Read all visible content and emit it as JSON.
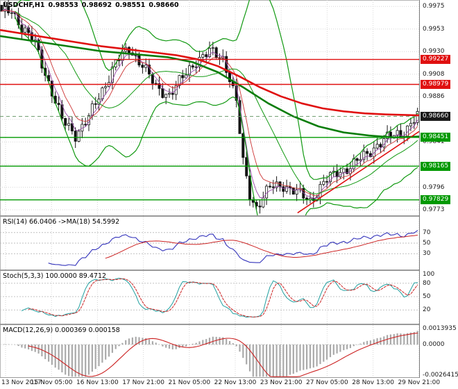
{
  "header": {
    "symbol": "USDCHF,H1",
    "open": "0.98553",
    "high": "0.98692",
    "low": "0.98551",
    "close": "0.98660"
  },
  "price_axis": {
    "labels": [
      {
        "text": "0.9975",
        "value": 0.99755
      },
      {
        "text": "0.9953",
        "value": 0.9953
      },
      {
        "text": "0.9930",
        "value": 0.99305
      },
      {
        "text": "0.9908",
        "value": 0.9908
      },
      {
        "text": "0.9886",
        "value": 0.98855
      },
      {
        "text": "0.9841",
        "value": 0.98405
      },
      {
        "text": "0.9796",
        "value": 0.97955
      },
      {
        "text": "0.9773",
        "value": 0.9773
      }
    ],
    "grid_extra": [
      0.9863,
      0.9818
    ],
    "badges": [
      {
        "text": "0.99227",
        "value": 0.99227,
        "color": "#e01010"
      },
      {
        "text": "0.98979",
        "value": 0.98979,
        "color": "#e01010"
      },
      {
        "text": "0.98660",
        "value": 0.9866,
        "color": "#1a1a1a"
      },
      {
        "text": "0.98451",
        "value": 0.98451,
        "color": "#009900"
      },
      {
        "text": "0.98165",
        "value": 0.98165,
        "color": "#009900"
      },
      {
        "text": "0.97829",
        "value": 0.97829,
        "color": "#009900"
      }
    ]
  },
  "chart_data": {
    "type": "candlestick",
    "title": "USDCHF,H1",
    "timeframe": "H1",
    "ylim": [
      0.97675,
      0.99819
    ],
    "x_labels": [
      "13 Nov 2017",
      "15 Nov 05:00",
      "16 Nov 13:00",
      "17 Nov 21:00",
      "21 Nov 05:00",
      "22 Nov 13:00",
      "23 Nov 21:00",
      "27 Nov 05:00",
      "28 Nov 13:00",
      "29 Nov 21:00"
    ],
    "closes": [
      0.9968,
      0.99693,
      0.99707,
      0.9972,
      0.99663,
      0.99607,
      0.9955,
      0.99508,
      0.99465,
      0.99423,
      0.9938,
      0.99285,
      0.9919,
      0.99095,
      0.99,
      0.98905,
      0.9881,
      0.98715,
      0.9862,
      0.98585,
      0.9855,
      0.98515,
      0.9848,
      0.98523,
      0.98565,
      0.98608,
      0.9865,
      0.98718,
      0.98785,
      0.98853,
      0.9892,
      0.9899,
      0.9906,
      0.9913,
      0.992,
      0.99233,
      0.99265,
      0.99298,
      0.9933,
      0.99293,
      0.99255,
      0.99218,
      0.9918,
      0.9912,
      0.9906,
      0.99,
      0.9894,
      0.98925,
      0.9891,
      0.98895,
      0.9888,
      0.9892,
      0.9896,
      0.99,
      0.9904,
      0.99085,
      0.9913,
      0.99175,
      0.9922,
      0.9924,
      0.9926,
      0.9928,
      0.993,
      0.99285,
      0.9927,
      0.99255,
      0.9924,
      0.99145,
      0.9905,
      0.98925,
      0.988,
      0.985,
      0.982,
      0.9804,
      0.9788,
      0.9782,
      0.9776,
      0.97808,
      0.97855,
      0.97903,
      0.9795,
      0.97958,
      0.97965,
      0.97973,
      0.9798,
      0.9796,
      0.9794,
      0.9792,
      0.979,
      0.9788,
      0.9786,
      0.9784,
      0.9782,
      0.97865,
      0.9791,
      0.97955,
      0.98,
      0.98025,
      0.9805,
      0.98075,
      0.981,
      0.98115,
      0.9813,
      0.98145,
      0.9816,
      0.98185,
      0.9821,
      0.98235,
      0.9826,
      0.9829,
      0.9832,
      0.9835,
      0.9838,
      0.984,
      0.9842,
      0.9844,
      0.9846,
      0.98473,
      0.98485,
      0.98498,
      0.9851,
      0.98548,
      0.98585,
      0.98623,
      0.9866
    ],
    "overlays": {
      "bollinger": {
        "period": 20,
        "deviation": 2,
        "color": "#119911"
      },
      "ema_fast": {
        "period": 4,
        "color": "#9a4aaa"
      },
      "ema_medium": {
        "period": 8,
        "color": "#cc3333"
      },
      "ma_slow_red": {
        "color": "#e01010",
        "points": [
          [
            0,
            0.9952
          ],
          [
            0.06,
            0.9948
          ],
          [
            0.12,
            0.9944
          ],
          [
            0.18,
            0.994
          ],
          [
            0.24,
            0.9936
          ],
          [
            0.3,
            0.9933
          ],
          [
            0.36,
            0.993
          ],
          [
            0.42,
            0.9927
          ],
          [
            0.47,
            0.9923
          ],
          [
            0.52,
            0.9916
          ],
          [
            0.57,
            0.9906
          ],
          [
            0.62,
            0.9895
          ],
          [
            0.67,
            0.9886
          ],
          [
            0.72,
            0.9879
          ],
          [
            0.77,
            0.9874
          ],
          [
            0.82,
            0.9871
          ],
          [
            0.87,
            0.9869
          ],
          [
            0.92,
            0.9868
          ],
          [
            1,
            0.9867
          ]
        ]
      },
      "ma_slow_green": {
        "color": "#0a7d0a",
        "points": [
          [
            0,
            0.9946
          ],
          [
            0.08,
            0.9941
          ],
          [
            0.16,
            0.9936
          ],
          [
            0.24,
            0.9931
          ],
          [
            0.32,
            0.9928
          ],
          [
            0.4,
            0.9925
          ],
          [
            0.46,
            0.992
          ],
          [
            0.52,
            0.991
          ],
          [
            0.58,
            0.9895
          ],
          [
            0.64,
            0.9879
          ],
          [
            0.7,
            0.9866
          ],
          [
            0.76,
            0.9856
          ],
          [
            0.82,
            0.985
          ],
          [
            0.88,
            0.9847
          ],
          [
            0.94,
            0.9845
          ],
          [
            1,
            0.9846
          ]
        ]
      },
      "trendline": {
        "color": "#e01010",
        "from": [
          0.71,
          0.977
        ],
        "to": [
          1,
          0.9851
        ]
      },
      "hlines": [
        {
          "value": 0.99227,
          "color": "#e01010",
          "style": "solid"
        },
        {
          "value": 0.98979,
          "color": "#e01010",
          "style": "solid"
        },
        {
          "value": 0.9866,
          "color": "#6a9a6a",
          "style": "dashed"
        },
        {
          "value": 0.98451,
          "color": "#009900",
          "style": "solid"
        },
        {
          "value": 0.98165,
          "color": "#009900",
          "style": "solid"
        },
        {
          "value": 0.97829,
          "color": "#009900",
          "style": "solid"
        }
      ]
    },
    "indicators": {
      "rsi": {
        "label": "RSI(14) 66.0406  ->MA(18) 54.5992",
        "period": 14,
        "ma_period": 18,
        "current": 66.0406,
        "ma_current": 54.5992,
        "levels": [
          70,
          50,
          30
        ],
        "range": [
          0,
          100
        ],
        "color_main": "#3333bb",
        "color_signal": "#cc2222"
      },
      "stoch": {
        "label": "Stoch(5,3,3) 100.0000 89.4712",
        "k_period": 5,
        "d_period": 3,
        "slowing": 3,
        "current_k": 100.0,
        "current_d": 89.4712,
        "levels": [
          100,
          80,
          50,
          20
        ],
        "range": [
          0,
          100
        ],
        "color_main": "#20a0a0",
        "color_signal": "#cc2222"
      },
      "macd": {
        "label": "MACD(12,26,9) 0.000369 0.000158",
        "fast": 12,
        "slow": 26,
        "signal": 9,
        "current": 0.000369,
        "current_signal": 0.000158,
        "range": [
          -0.00285,
          0.0017
        ],
        "axis_labels": [
          {
            "text": "0.0013935",
            "value": 0.0013935
          },
          {
            "text": "0.0000",
            "value": 0
          },
          {
            "text": "-0.0026415",
            "value": -0.0026415
          }
        ],
        "color_hist": "#aaaaaa",
        "color_signal": "#cc2222"
      }
    }
  }
}
